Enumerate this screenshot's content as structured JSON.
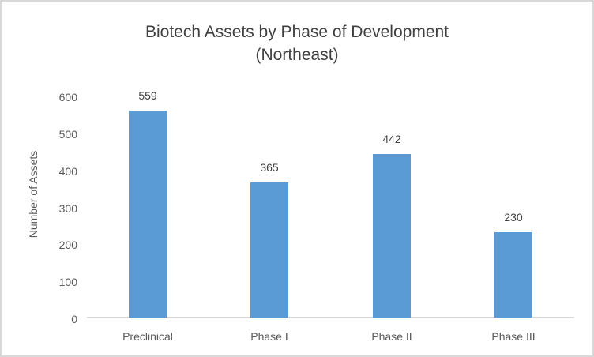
{
  "window": {
    "background": "#ffffff",
    "border_color": "#d9d9d9"
  },
  "title": {
    "line1": "Biotech Assets by Phase of Development",
    "line2": "(Northeast)"
  },
  "chart_data": {
    "type": "bar",
    "title": "Biotech Assets by Phase of Development (Northeast)",
    "categories": [
      "Preclinical",
      "Phase I",
      "Phase II",
      "Phase III"
    ],
    "values": [
      559,
      365,
      442,
      230
    ],
    "data_labels": [
      "559",
      "365",
      "442",
      "230"
    ],
    "xlabel": "",
    "ylabel": "Number of Assets",
    "yticks": [
      0,
      100,
      200,
      300,
      400,
      500,
      600
    ],
    "ylim": [
      0,
      600
    ],
    "grid": false,
    "legend": false,
    "bar_color": "#5b9bd5",
    "data_label_color": "#404040",
    "axis_text_color": "#595959",
    "axis_line_color": "#d9d9d9",
    "title_color": "#404040"
  }
}
